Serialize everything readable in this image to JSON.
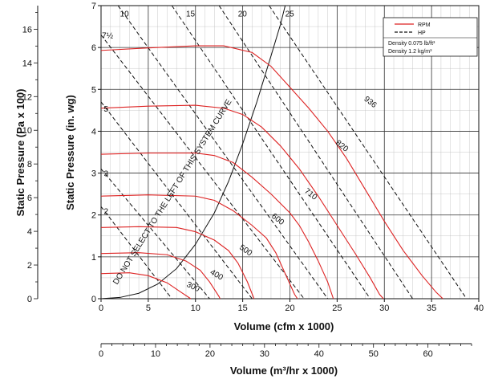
{
  "chart_data": {
    "type": "line",
    "title": "",
    "xlabel": "Volume (cfm x 1000)",
    "x2label": "Volume (m³/hr x 1000)",
    "ylabel": "Static Pressure (in. wg)",
    "y2label": "Static Pressure (Pa x 100)",
    "xlim": [
      0,
      40
    ],
    "ylim": [
      0,
      7
    ],
    "x2lim": [
      0,
      68
    ],
    "y2lim": [
      0,
      17.4
    ],
    "grid": true,
    "legend_position": "top-right",
    "x_ticks": [
      "0",
      "5",
      "10",
      "15",
      "20",
      "25",
      "30",
      "35",
      "40"
    ],
    "y_ticks": [
      "0",
      "1",
      "2",
      "3",
      "4",
      "5",
      "6",
      "7"
    ],
    "x2_ticks": [
      "0",
      "10",
      "20",
      "30",
      "40",
      "50",
      "60"
    ],
    "y2_ticks": [
      "0",
      "2",
      "4",
      "6",
      "8",
      "10",
      "12",
      "14",
      "16"
    ],
    "legend": {
      "rpm_label": "RPM",
      "hp_label": "HP",
      "density_imperial": "Density 0.075 lb/ft³",
      "density_metric": "Density 1.2 kg/m³"
    },
    "system_curve_note": "DO NOT SELECT TO THE LEFT OF THIS SYSTEM CURVE",
    "system_curve_label": "DO NOT SELECT TO THE LEFT OF THIS SYSTEM CURVE",
    "system_curve": [
      [
        0,
        0
      ],
      [
        2,
        0.03
      ],
      [
        4,
        0.13
      ],
      [
        6,
        0.35
      ],
      [
        8,
        0.72
      ],
      [
        10,
        1.3
      ],
      [
        12,
        2.05
      ],
      [
        13.5,
        2.8
      ],
      [
        15,
        3.7
      ],
      [
        16.5,
        4.7
      ],
      [
        18,
        5.8
      ],
      [
        19,
        6.55
      ],
      [
        19.5,
        7
      ]
    ],
    "series": [
      {
        "name": "936",
        "kind": "rpm",
        "values": [
          [
            0,
            5.93
          ],
          [
            5,
            5.99
          ],
          [
            10,
            6.04
          ],
          [
            13,
            6.04
          ],
          [
            16,
            5.88
          ],
          [
            18,
            5.55
          ],
          [
            20,
            5.05
          ],
          [
            22,
            4.55
          ],
          [
            24,
            4.0
          ],
          [
            26,
            3.35
          ],
          [
            28,
            2.6
          ],
          [
            30,
            1.85
          ],
          [
            32,
            1.15
          ],
          [
            34,
            0.55
          ],
          [
            35.5,
            0.15
          ],
          [
            36.2,
            0
          ]
        ]
      },
      {
        "name": "820",
        "kind": "rpm",
        "values": [
          [
            0,
            4.55
          ],
          [
            5,
            4.6
          ],
          [
            10,
            4.62
          ],
          [
            13,
            4.55
          ],
          [
            15,
            4.4
          ],
          [
            17,
            4.1
          ],
          [
            19,
            3.65
          ],
          [
            21,
            3.1
          ],
          [
            23,
            2.45
          ],
          [
            25,
            1.75
          ],
          [
            27,
            1.05
          ],
          [
            28.5,
            0.5
          ],
          [
            29.5,
            0.1
          ],
          [
            29.9,
            0
          ]
        ]
      },
      {
        "name": "710",
        "kind": "rpm",
        "values": [
          [
            0,
            3.45
          ],
          [
            5,
            3.48
          ],
          [
            10,
            3.48
          ],
          [
            12,
            3.42
          ],
          [
            14,
            3.25
          ],
          [
            16,
            2.9
          ],
          [
            18,
            2.5
          ],
          [
            20,
            2.05
          ],
          [
            21,
            1.75
          ],
          [
            22,
            1.35
          ],
          [
            23,
            0.9
          ],
          [
            24,
            0.4
          ],
          [
            24.6,
            0
          ]
        ]
      },
      {
        "name": "600",
        "kind": "rpm",
        "values": [
          [
            0,
            2.45
          ],
          [
            5,
            2.48
          ],
          [
            10,
            2.45
          ],
          [
            12,
            2.35
          ],
          [
            14,
            2.1
          ],
          [
            16,
            1.75
          ],
          [
            17.5,
            1.45
          ],
          [
            18.5,
            1.1
          ],
          [
            19.5,
            0.6
          ],
          [
            20.5,
            0.1
          ],
          [
            20.8,
            0
          ]
        ]
      },
      {
        "name": "500",
        "kind": "rpm",
        "values": [
          [
            0,
            1.7
          ],
          [
            4,
            1.72
          ],
          [
            8,
            1.7
          ],
          [
            10,
            1.6
          ],
          [
            12,
            1.4
          ],
          [
            13.5,
            1.15
          ],
          [
            14.5,
            0.85
          ],
          [
            15.5,
            0.4
          ],
          [
            16.2,
            0
          ]
        ]
      },
      {
        "name": "400",
        "kind": "rpm",
        "values": [
          [
            0,
            1.08
          ],
          [
            4,
            1.1
          ],
          [
            7,
            1.05
          ],
          [
            9,
            0.9
          ],
          [
            10.5,
            0.68
          ],
          [
            11.5,
            0.4
          ],
          [
            12.5,
            0.05
          ],
          [
            12.6,
            0
          ]
        ]
      },
      {
        "name": "300",
        "kind": "rpm",
        "values": [
          [
            0,
            0.6
          ],
          [
            3,
            0.62
          ],
          [
            5,
            0.55
          ],
          [
            7,
            0.38
          ],
          [
            8.5,
            0.15
          ],
          [
            9.5,
            0
          ]
        ]
      },
      {
        "name": "25",
        "kind": "hp",
        "values": [
          [
            17.8,
            7
          ],
          [
            38.7,
            0
          ]
        ]
      },
      {
        "name": "20",
        "kind": "hp",
        "values": [
          [
            12.5,
            7
          ],
          [
            33,
            0
          ]
        ]
      },
      {
        "name": "15",
        "kind": "hp",
        "values": [
          [
            7.5,
            7
          ],
          [
            28.5,
            0
          ]
        ]
      },
      {
        "name": "10",
        "kind": "hp",
        "values": [
          [
            1.8,
            7
          ],
          [
            24,
            0
          ]
        ]
      },
      {
        "name": "7½",
        "kind": "hp",
        "values": [
          [
            0,
            6.3
          ],
          [
            21.5,
            0
          ]
        ]
      },
      {
        "name": "5",
        "kind": "hp",
        "values": [
          [
            0,
            4.7
          ],
          [
            16,
            0
          ]
        ]
      },
      {
        "name": "3",
        "kind": "hp",
        "values": [
          [
            0,
            3.1
          ],
          [
            11.5,
            0
          ]
        ]
      },
      {
        "name": "2",
        "kind": "hp",
        "values": [
          [
            0,
            2.2
          ],
          [
            7.5,
            0
          ]
        ]
      }
    ],
    "rpm_labels": [
      {
        "text": "936",
        "x": 27.8,
        "y": 4.75,
        "angle": 38
      },
      {
        "text": "820",
        "x": 24.8,
        "y": 3.7,
        "angle": 38
      },
      {
        "text": "710",
        "x": 21.5,
        "y": 2.55,
        "angle": 38
      },
      {
        "text": "600",
        "x": 18.0,
        "y": 1.95,
        "angle": 38
      },
      {
        "text": "500",
        "x": 14.6,
        "y": 1.2,
        "angle": 35
      },
      {
        "text": "400",
        "x": 11.5,
        "y": 0.6,
        "angle": 30
      },
      {
        "text": "300",
        "x": 9.0,
        "y": 0.3,
        "angle": 25
      }
    ],
    "hp_labels": [
      {
        "text": "25",
        "x": 19.5,
        "y": 6.82
      },
      {
        "text": "20",
        "x": 14.5,
        "y": 6.82
      },
      {
        "text": "15",
        "x": 9.0,
        "y": 6.82
      },
      {
        "text": "10",
        "x": 2.0,
        "y": 6.82
      },
      {
        "text": "7½",
        "x": 0.1,
        "y": 6.3
      },
      {
        "text": "5",
        "x": 0.3,
        "y": 4.55
      },
      {
        "text": "3",
        "x": 0.3,
        "y": 3.0
      },
      {
        "text": "2",
        "x": 0.3,
        "y": 2.1
      }
    ]
  },
  "colors": {
    "rpm": "#dd2222",
    "hp": "#111111",
    "system_curve": "#111111",
    "grid": "#333333"
  }
}
